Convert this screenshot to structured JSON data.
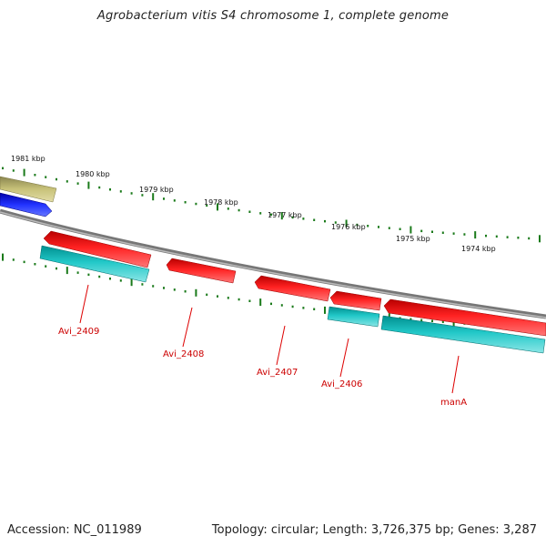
{
  "title": "Agrobacterium vitis S4 chromosome 1, complete genome",
  "accession_text": "Accession: NC_011989",
  "summary_text": "Topology: circular; Length: 3,726,375 bp; Genes: 3,287",
  "ruler": {
    "unit": "kbp",
    "labels": [
      "1981 kbp",
      "1980 kbp",
      "1979 kbp",
      "1978 kbp",
      "1977 kbp",
      "1976 kbp",
      "1975 kbp",
      "1974 kbp"
    ]
  },
  "colors": {
    "gene_red": "#ee1111",
    "gene_cyan": "#11bbbb",
    "gene_blue": "#1122ee",
    "gene_olive": "#b8b26a",
    "backbone": "#888888",
    "tick_green": "#1a7a1a",
    "label_red": "#cc0000"
  },
  "gene_labels": [
    "Avi_2409",
    "Avi_2408",
    "Avi_2407",
    "Avi_2406",
    "manA"
  ]
}
